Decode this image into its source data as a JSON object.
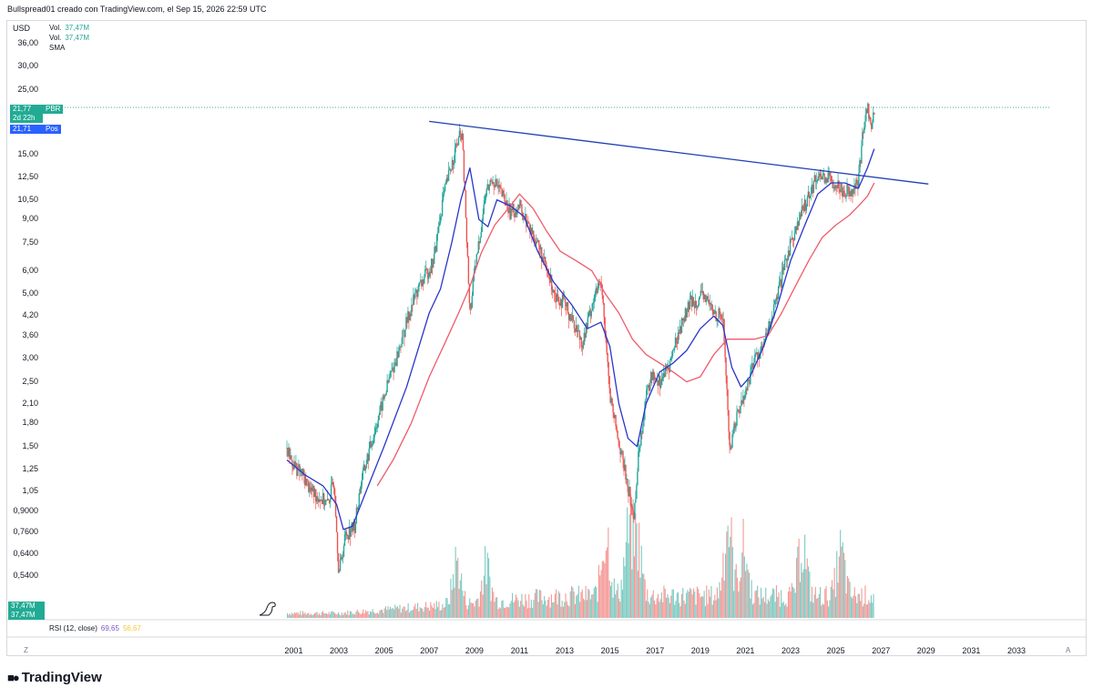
{
  "header": {
    "credit": "Bullspread01 creado con TradingView.com, el Sep 15, 2026 22:59 UTC"
  },
  "legend": {
    "currency": "USD",
    "items": [
      {
        "label": "Vol.",
        "value": "37,47M"
      },
      {
        "label": "Vol.",
        "value": "37,47M"
      },
      {
        "label": "SMA",
        "value": ""
      }
    ]
  },
  "price_badges": {
    "last": {
      "value": "21,77",
      "ticker": "PBR",
      "countdown": "2d 22h"
    },
    "pos": {
      "value": "21,71",
      "label": "Pos"
    },
    "volume": {
      "value": "37,47M",
      "value2": "37,47M"
    }
  },
  "rsi": {
    "label": "RSI (12, close)",
    "value1": "69,65",
    "value2": "56,67"
  },
  "footer": {
    "brand": "TradingView",
    "left_btn": "Z",
    "right_btn": "A"
  },
  "colors": {
    "up": "#26a69a",
    "down": "#ef5350",
    "sma_fast": "#2a35c9",
    "sma_slow": "#ef5b6b",
    "trendline": "#1c3fb5",
    "badge_green": "#22ab94",
    "badge_blue": "#2962ff"
  },
  "chart_data": {
    "type": "line",
    "symbol": "PBR",
    "scale": "log",
    "y_ticks": [
      "36,00",
      "30,00",
      "25,00",
      "15,00",
      "12,50",
      "10,50",
      "9,00",
      "7,50",
      "6,00",
      "5,00",
      "4,20",
      "3,60",
      "3,00",
      "2,50",
      "2,10",
      "1,80",
      "1,50",
      "1,25",
      "1,05",
      "0,9000",
      "0,7600",
      "0,6400",
      "0,5400"
    ],
    "y_tick_values": [
      36,
      30,
      25,
      15,
      12.5,
      10.5,
      9,
      7.5,
      6,
      5,
      4.2,
      3.6,
      3,
      2.5,
      2.1,
      1.8,
      1.5,
      1.25,
      1.05,
      0.9,
      0.76,
      0.64,
      0.54
    ],
    "x_ticks": [
      "2001",
      "2003",
      "2005",
      "2007",
      "2009",
      "2011",
      "2013",
      "2015",
      "2017",
      "2019",
      "2021",
      "2023",
      "2025",
      "2027",
      "2029",
      "2031",
      "2033"
    ],
    "x_tick_values": [
      2001,
      2003,
      2005,
      2007,
      2009,
      2011,
      2013,
      2015,
      2017,
      2019,
      2021,
      2023,
      2025,
      2027,
      2029,
      2031,
      2033
    ],
    "xlim": [
      2000.7,
      2034.5
    ],
    "ylim": [
      0.47,
      40
    ],
    "series": [
      {
        "x": [
          2000.7,
          2001.0,
          2001.4,
          2001.8,
          2002.2,
          2002.5,
          2002.8,
          2003.0,
          2003.3,
          2003.7,
          2004.0,
          2004.4,
          2004.8,
          2005.2,
          2005.6,
          2006.0,
          2006.4,
          2006.8,
          2007.2,
          2007.6,
          2007.9,
          2008.2,
          2008.45,
          2008.6,
          2008.8,
          2008.95,
          2009.2,
          2009.5,
          2009.8,
          2010.2,
          2010.6,
          2011.0,
          2011.4,
          2011.8,
          2012.2,
          2012.6,
          2013.0,
          2013.4,
          2013.8,
          2014.2,
          2014.6,
          2014.8,
          2015.0,
          2015.3,
          2015.6,
          2015.9,
          2016.05,
          2016.3,
          2016.6,
          2016.9,
          2017.2,
          2017.6,
          2018.0,
          2018.3,
          2018.6,
          2018.9,
          2019.2,
          2019.6,
          2020.0,
          2020.2,
          2020.3,
          2020.6,
          2021.0,
          2021.4,
          2021.8,
          2022.2,
          2022.6,
          2023.0,
          2023.4,
          2023.8,
          2024.2,
          2024.6,
          2025.0,
          2025.4,
          2025.7,
          2026.0,
          2026.2,
          2026.4,
          2026.6,
          2026.7
        ],
        "values": [
          1.45,
          1.3,
          1.2,
          1.05,
          1.0,
          0.95,
          1.15,
          0.55,
          0.75,
          0.8,
          1.15,
          1.5,
          1.95,
          2.5,
          3.1,
          4.0,
          5.0,
          5.7,
          6.5,
          10.5,
          13.0,
          16.0,
          18.0,
          10.0,
          4.2,
          5.4,
          7.5,
          11.0,
          12.5,
          11.0,
          9.5,
          10.0,
          8.5,
          7.5,
          6.0,
          5.0,
          4.6,
          4.0,
          3.4,
          4.6,
          5.5,
          3.8,
          2.2,
          1.7,
          1.3,
          1.0,
          0.85,
          1.5,
          2.2,
          2.7,
          2.5,
          2.8,
          3.6,
          4.2,
          4.7,
          4.8,
          4.9,
          4.3,
          4.2,
          2.2,
          1.45,
          1.9,
          2.3,
          3.0,
          3.3,
          4.2,
          5.6,
          7.5,
          9.0,
          11.0,
          12.8,
          12.5,
          12.0,
          11.2,
          11.5,
          12.0,
          18.0,
          22.0,
          18.0,
          21.77
        ]
      }
    ],
    "sma_fast": {
      "x": [
        2000.7,
        2001.5,
        2002.3,
        2002.9,
        2003.2,
        2003.6,
        2004.2,
        2005.0,
        2006.0,
        2007.0,
        2007.5,
        2008.0,
        2008.4,
        2008.8,
        2009.2,
        2009.6,
        2010.0,
        2010.6,
        2011.2,
        2011.8,
        2012.5,
        2013.3,
        2014.0,
        2014.6,
        2015.0,
        2015.4,
        2015.8,
        2016.2,
        2016.6,
        2017.2,
        2017.8,
        2018.4,
        2019.0,
        2019.6,
        2020.0,
        2020.4,
        2020.8,
        2021.2,
        2021.8,
        2022.4,
        2023.0,
        2023.6,
        2024.2,
        2024.8,
        2025.4,
        2026.0,
        2026.4,
        2026.7
      ],
      "values": [
        1.35,
        1.2,
        1.1,
        0.95,
        0.78,
        0.8,
        1.05,
        1.5,
        2.4,
        4.3,
        5.2,
        7.5,
        10.5,
        13.5,
        9.0,
        8.5,
        10.5,
        10.0,
        9.2,
        7.0,
        5.5,
        4.6,
        3.8,
        4.0,
        3.3,
        2.1,
        1.6,
        1.5,
        2.1,
        2.7,
        2.9,
        3.2,
        3.8,
        4.2,
        3.9,
        2.8,
        2.4,
        2.6,
        3.3,
        4.5,
        6.5,
        8.5,
        11.0,
        12.0,
        12.0,
        11.5,
        13.5,
        15.7
      ]
    },
    "sma_slow": {
      "x": [
        2004.7,
        2005.4,
        2006.2,
        2007.0,
        2007.7,
        2008.3,
        2008.8,
        2009.3,
        2009.9,
        2010.5,
        2011.0,
        2011.6,
        2012.2,
        2012.8,
        2013.5,
        2014.2,
        2014.8,
        2015.4,
        2016.0,
        2016.6,
        2017.2,
        2017.8,
        2018.4,
        2019.0,
        2019.6,
        2020.2,
        2020.8,
        2021.4,
        2022.0,
        2022.6,
        2023.2,
        2023.8,
        2024.4,
        2025.0,
        2025.6,
        2026.0,
        2026.4,
        2026.7
      ],
      "values": [
        1.1,
        1.35,
        1.8,
        2.6,
        3.4,
        4.3,
        5.3,
        6.9,
        8.6,
        9.8,
        11.0,
        9.8,
        8.2,
        7.0,
        6.5,
        6.0,
        5.0,
        4.3,
        3.5,
        3.1,
        2.9,
        2.7,
        2.5,
        2.6,
        3.1,
        3.5,
        3.5,
        3.5,
        3.6,
        4.3,
        5.3,
        6.5,
        7.8,
        8.6,
        9.3,
        10.0,
        10.8,
        12.0
      ]
    },
    "trendline": {
      "x": [
        2007.0,
        2029.1
      ],
      "values": [
        19.5,
        11.9
      ]
    },
    "last_price": 21.77,
    "volume": {
      "x_range": [
        2000.7,
        2026.7
      ],
      "peaks": [
        {
          "x": 2008.2,
          "v": 0.55
        },
        {
          "x": 2009.5,
          "v": 0.45
        },
        {
          "x": 2014.8,
          "v": 0.85
        },
        {
          "x": 2015.8,
          "v": 0.75
        },
        {
          "x": 2016.2,
          "v": 0.7
        },
        {
          "x": 2020.2,
          "v": 0.95
        },
        {
          "x": 2020.9,
          "v": 0.6
        },
        {
          "x": 2023.5,
          "v": 0.7
        },
        {
          "x": 2025.2,
          "v": 0.55
        }
      ]
    }
  }
}
